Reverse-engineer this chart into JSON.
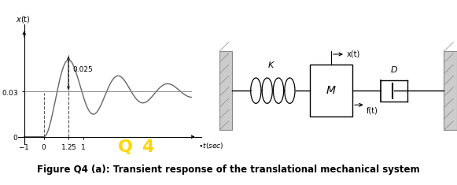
{
  "fig_width": 5.81,
  "fig_height": 2.35,
  "dpi": 100,
  "background": "#ffffff",
  "steady_state": 0.03,
  "peak_value": 0.055,
  "peak_time": 1.25,
  "annotation_0025": "0.025",
  "figure_caption": "Figure Q4 (a): Transient response of the translational mechanical system",
  "caption_color": "#000000",
  "q4_color": "#FFD700",
  "q4_fontsize": 16,
  "caption_fontsize": 8.5,
  "wall_color": "#cccccc",
  "spring_K_label": "K",
  "damper_D_label": "D",
  "mass_M_label": "M",
  "xt_label": "x(t)",
  "ft_label": "f(t)"
}
